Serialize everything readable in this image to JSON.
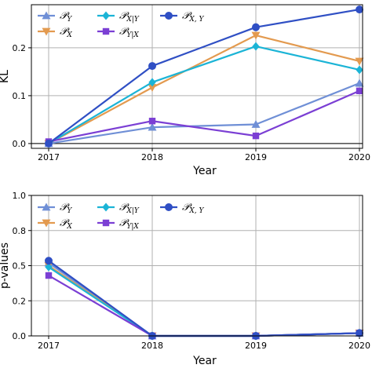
{
  "chart_data": [
    {
      "type": "line",
      "title": "",
      "xlabel": "Year",
      "ylabel": "KL",
      "x": [
        "2017",
        "2018",
        "2019",
        "2020"
      ],
      "ylim": [
        -0.01,
        0.29
      ],
      "yticks": [
        "0.0",
        "0.1",
        "0.2"
      ],
      "grid": true,
      "legend": "top-left",
      "series": [
        {
          "name": "P_Y",
          "label_main": "𝒫",
          "label_sub": "Y",
          "color": "#6f8fd6",
          "marker": "triangle-up",
          "values": [
            0.0,
            0.034,
            0.04,
            0.126
          ]
        },
        {
          "name": "P_X",
          "label_main": "𝒫",
          "label_sub": "X",
          "color": "#e39a4f",
          "marker": "triangle-down",
          "values": [
            0.0,
            0.117,
            0.226,
            0.172
          ]
        },
        {
          "name": "P_X|Y",
          "label_main": "𝒫",
          "label_sub": "X|Y",
          "color": "#1bb4d6",
          "marker": "diamond",
          "values": [
            0.0,
            0.128,
            0.203,
            0.154
          ]
        },
        {
          "name": "P_Y|X",
          "label_main": "𝒫",
          "label_sub": "Y|X",
          "color": "#7b3fd4",
          "marker": "square",
          "values": [
            0.004,
            0.047,
            0.016,
            0.11
          ]
        },
        {
          "name": "P_X,Y",
          "label_main": "𝒫",
          "label_sub": "X, Y",
          "color": "#2f4fc4",
          "marker": "circle",
          "values": [
            0.0,
            0.162,
            0.243,
            0.28
          ]
        }
      ]
    },
    {
      "type": "line",
      "title": "",
      "xlabel": "Year",
      "ylabel": "p-values",
      "x": [
        "2017",
        "2018",
        "2019",
        "2020"
      ],
      "ylim": [
        0.0,
        1.0
      ],
      "yticks": [
        "0.0",
        "0.2",
        "0.5",
        "0.8",
        "1.0"
      ],
      "ytick_values": [
        0.0,
        0.25,
        0.5,
        0.75,
        1.0
      ],
      "grid": true,
      "legend": "top-left",
      "series": [
        {
          "name": "P_Y",
          "label_main": "𝒫",
          "label_sub": "Y",
          "color": "#6f8fd6",
          "marker": "triangle-up",
          "values": [
            0.52,
            0.0,
            0.0,
            0.02
          ]
        },
        {
          "name": "P_X",
          "label_main": "𝒫",
          "label_sub": "X",
          "color": "#e39a4f",
          "marker": "triangle-down",
          "values": [
            0.5,
            0.0,
            0.0,
            0.02
          ]
        },
        {
          "name": "P_X|Y",
          "label_main": "𝒫",
          "label_sub": "X|Y",
          "color": "#1bb4d6",
          "marker": "diamond",
          "values": [
            0.49,
            0.0,
            0.0,
            0.02
          ]
        },
        {
          "name": "P_Y|X",
          "label_main": "𝒫",
          "label_sub": "Y|X",
          "color": "#7b3fd4",
          "marker": "square",
          "values": [
            0.43,
            0.0,
            0.0,
            0.02
          ]
        },
        {
          "name": "P_X,Y",
          "label_main": "𝒫",
          "label_sub": "X, Y",
          "color": "#2f4fc4",
          "marker": "circle",
          "values": [
            0.535,
            0.0,
            0.0,
            0.02
          ]
        }
      ]
    }
  ]
}
